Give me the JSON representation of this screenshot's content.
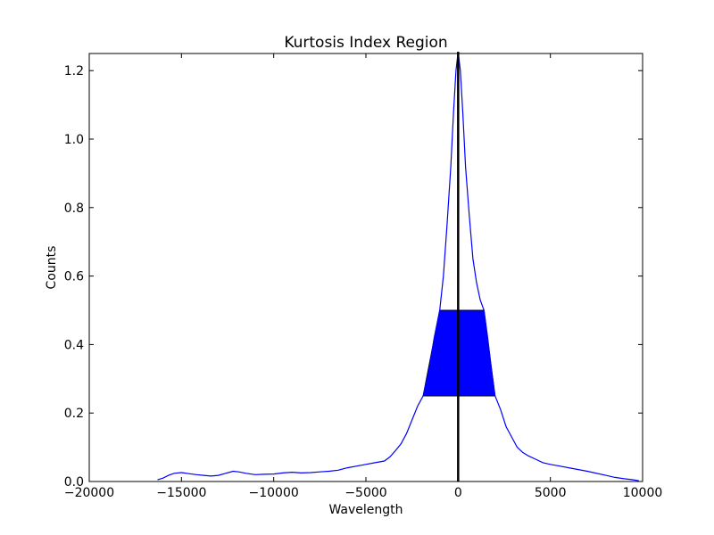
{
  "chart_data": {
    "type": "line",
    "title": "Kurtosis Index Region",
    "xlabel": "Wavelength",
    "ylabel": "Counts",
    "xlim": [
      -20000,
      10000
    ],
    "ylim": [
      0.0,
      1.25
    ],
    "x_ticks": [
      -20000,
      -15000,
      -10000,
      -5000,
      0,
      5000,
      10000
    ],
    "x_tick_labels": [
      "−20000",
      "−15000",
      "−10000",
      "−5000",
      "0",
      "5000",
      "10000"
    ],
    "y_ticks": [
      0.0,
      0.2,
      0.4,
      0.6,
      0.8,
      1.0,
      1.2
    ],
    "y_tick_labels": [
      "0.0",
      "0.2",
      "0.4",
      "0.6",
      "0.8",
      "1.0",
      "1.2"
    ],
    "grid": false,
    "series_color": "#0000ff",
    "series": [
      {
        "points": [
          [
            -16300,
            0.005
          ],
          [
            -16000,
            0.01
          ],
          [
            -15700,
            0.018
          ],
          [
            -15400,
            0.024
          ],
          [
            -15000,
            0.026
          ],
          [
            -14600,
            0.023
          ],
          [
            -14200,
            0.02
          ],
          [
            -13800,
            0.018
          ],
          [
            -13400,
            0.016
          ],
          [
            -13000,
            0.018
          ],
          [
            -12600,
            0.024
          ],
          [
            -12200,
            0.03
          ],
          [
            -11900,
            0.028
          ],
          [
            -11500,
            0.024
          ],
          [
            -11000,
            0.02
          ],
          [
            -10500,
            0.021
          ],
          [
            -10000,
            0.022
          ],
          [
            -9500,
            0.025
          ],
          [
            -9000,
            0.027
          ],
          [
            -8500,
            0.025
          ],
          [
            -8000,
            0.026
          ],
          [
            -7500,
            0.028
          ],
          [
            -7000,
            0.03
          ],
          [
            -6500,
            0.033
          ],
          [
            -6000,
            0.04
          ],
          [
            -5500,
            0.045
          ],
          [
            -5000,
            0.05
          ],
          [
            -4500,
            0.055
          ],
          [
            -4000,
            0.06
          ],
          [
            -3700,
            0.072
          ],
          [
            -3400,
            0.09
          ],
          [
            -3100,
            0.11
          ],
          [
            -2800,
            0.14
          ],
          [
            -2500,
            0.18
          ],
          [
            -2200,
            0.22
          ],
          [
            -1900,
            0.25
          ],
          [
            -1600,
            0.32
          ],
          [
            -1300,
            0.42
          ],
          [
            -1000,
            0.5
          ],
          [
            -800,
            0.6
          ],
          [
            -600,
            0.75
          ],
          [
            -400,
            0.92
          ],
          [
            -250,
            1.08
          ],
          [
            -120,
            1.2
          ],
          [
            0,
            1.255
          ],
          [
            120,
            1.2
          ],
          [
            250,
            1.08
          ],
          [
            400,
            0.92
          ],
          [
            600,
            0.78
          ],
          [
            800,
            0.65
          ],
          [
            1000,
            0.58
          ],
          [
            1200,
            0.53
          ],
          [
            1400,
            0.5
          ],
          [
            1600,
            0.42
          ],
          [
            1800,
            0.33
          ],
          [
            2000,
            0.25
          ],
          [
            2300,
            0.21
          ],
          [
            2600,
            0.16
          ],
          [
            2900,
            0.13
          ],
          [
            3200,
            0.1
          ],
          [
            3500,
            0.085
          ],
          [
            3800,
            0.075
          ],
          [
            4200,
            0.065
          ],
          [
            4600,
            0.055
          ],
          [
            5000,
            0.05
          ],
          [
            5500,
            0.045
          ],
          [
            6000,
            0.04
          ],
          [
            7000,
            0.03
          ],
          [
            8000,
            0.018
          ],
          [
            8500,
            0.012
          ],
          [
            9000,
            0.008
          ],
          [
            9500,
            0.005
          ],
          [
            9800,
            0.002
          ]
        ]
      }
    ],
    "shaded_region": {
      "color": "#0000ff",
      "y_low": 0.25,
      "y_high": 0.5,
      "x_low_at_y_low": -1900,
      "x_low_at_y_high": -1000,
      "x_high_at_y_high": 1400,
      "x_high_at_y_low": 2000
    },
    "vertical_line": {
      "x": 0,
      "y_from": 0.0,
      "y_to": 1.255,
      "color": "#000000"
    }
  }
}
